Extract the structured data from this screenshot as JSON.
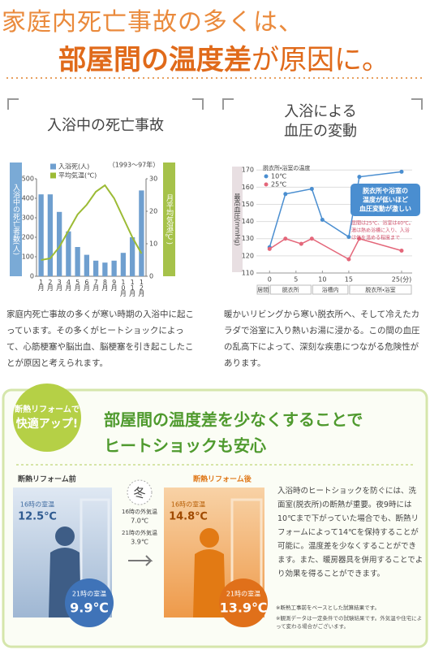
{
  "header": {
    "line1": "家庭内死亡事故の多くは、",
    "line2_emph": "部屋間の温度差",
    "line2_rest": "が原因に。"
  },
  "chart_data": [
    {
      "type": "bar",
      "title": "入浴中の死亡事故",
      "note": "（1993〜97年）",
      "ylabel": "入浴中の死亡者数(人)",
      "y2label": "月平均気温(℃)",
      "categories": [
        "1月",
        "2月",
        "3月",
        "4月",
        "5月",
        "6月",
        "7月",
        "8月",
        "9月",
        "10月",
        "11月",
        "12月"
      ],
      "series": [
        {
          "name": "入浴死(人)",
          "color": "#6f9fcf",
          "values": [
            420,
            420,
            330,
            230,
            150,
            110,
            80,
            70,
            80,
            120,
            200,
            440
          ]
        },
        {
          "name": "平均気温(℃)",
          "color": "#9cbb35",
          "type": "line",
          "axis": "y2",
          "values": [
            5,
            5.5,
            9,
            14,
            19,
            22,
            26,
            28,
            24,
            18,
            12,
            7
          ]
        }
      ],
      "ylim": [
        0,
        500
      ],
      "yticks": [
        0,
        100,
        200,
        300,
        400,
        500
      ],
      "y2lim": [
        0,
        30
      ],
      "y2ticks": [
        0,
        10,
        20,
        30
      ]
    },
    {
      "type": "line",
      "title": [
        "入浴による",
        "血圧の変動"
      ],
      "ylabel": "最高血圧(mmHg)",
      "legend_title": "脱衣所・浴室の温度",
      "series": [
        {
          "name": "10℃",
          "color": "#4a8ed0",
          "x": [
            0,
            3,
            8,
            10,
            15,
            17,
            25
          ],
          "values": [
            125,
            156,
            159,
            141,
            131,
            166,
            169
          ]
        },
        {
          "name": "25℃",
          "color": "#e4677a",
          "x": [
            0,
            3,
            6,
            8,
            15,
            17,
            25
          ],
          "values": [
            124,
            130,
            127,
            130,
            118,
            130,
            123
          ]
        }
      ],
      "xlim": [
        -2.5,
        27
      ],
      "xticks": [
        0,
        5,
        10,
        15,
        {
          "value": 25,
          "label": "25(分)"
        }
      ],
      "ylim": [
        110,
        172
      ],
      "yticks": [
        110,
        120,
        130,
        140,
        150,
        160,
        170
      ],
      "grid": true,
      "phases": [
        "居間",
        "脱衣所",
        "浴槽内",
        "脱衣所・浴室"
      ],
      "callout": [
        "脱衣所や浴室の",
        "温度が低いほど",
        "血圧変動が激しい"
      ],
      "condition": [
        "居間は25℃、浴室は40℃。",
        "湯は熱め浴槽に入り、入浴",
        "は体を温める程度まで"
      ]
    }
  ],
  "paragraphs": {
    "left": "家庭内死亡事故の多くが寒い時期の入浴中に起こっています。その多くがヒートショックによって、心筋梗塞や脳出血、脳梗塞を引き起こしたことが原因と考えられます。",
    "right": "暖かいリビングから寒い脱衣所へ、そして冷えたカラダで浴室に入り熱いお湯に浸かる。この間の血圧の乱高下によって、深刻な疾患につながる危険性があります。"
  },
  "reform": {
    "badge": [
      "断熱リフォームで",
      "快適アップ!"
    ],
    "heading": [
      "部屋間の温度差を少なくすることで",
      "ヒートショックも安心"
    ],
    "before": {
      "label": "断熱リフォーム前",
      "t16_label": "16時の室温",
      "t16_value": "12.5℃",
      "t21_label": "21時の室温",
      "t21_value": "9.9℃"
    },
    "after": {
      "label": "断熱リフォーム後",
      "t16_label": "16時の室温",
      "t16_value": "14.8℃",
      "t21_label": "21時の室温",
      "t21_value": "13.9℃"
    },
    "outside": {
      "season": "冬",
      "t16_label": "16時の外気温",
      "t16_value": "7.0℃",
      "t21_label": "21時の外気温",
      "t21_value": "3.9℃"
    },
    "body": "入浴時のヒートショックを防ぐには、洗面室(脱衣所)の断熱が重要。夜9時には10℃まで下がっていた場合でも、断熱リフォームによって14℃を保持することが可能に。温度差を少なくすることができます。また、暖房器具を併用することでより効果を得ることができます。",
    "footnote": [
      "※断熱工事前をベースとした試算結果です。",
      "※観測データは一定条件での試験結果です。外気温や住宅によって変わる場合がございます。"
    ]
  }
}
